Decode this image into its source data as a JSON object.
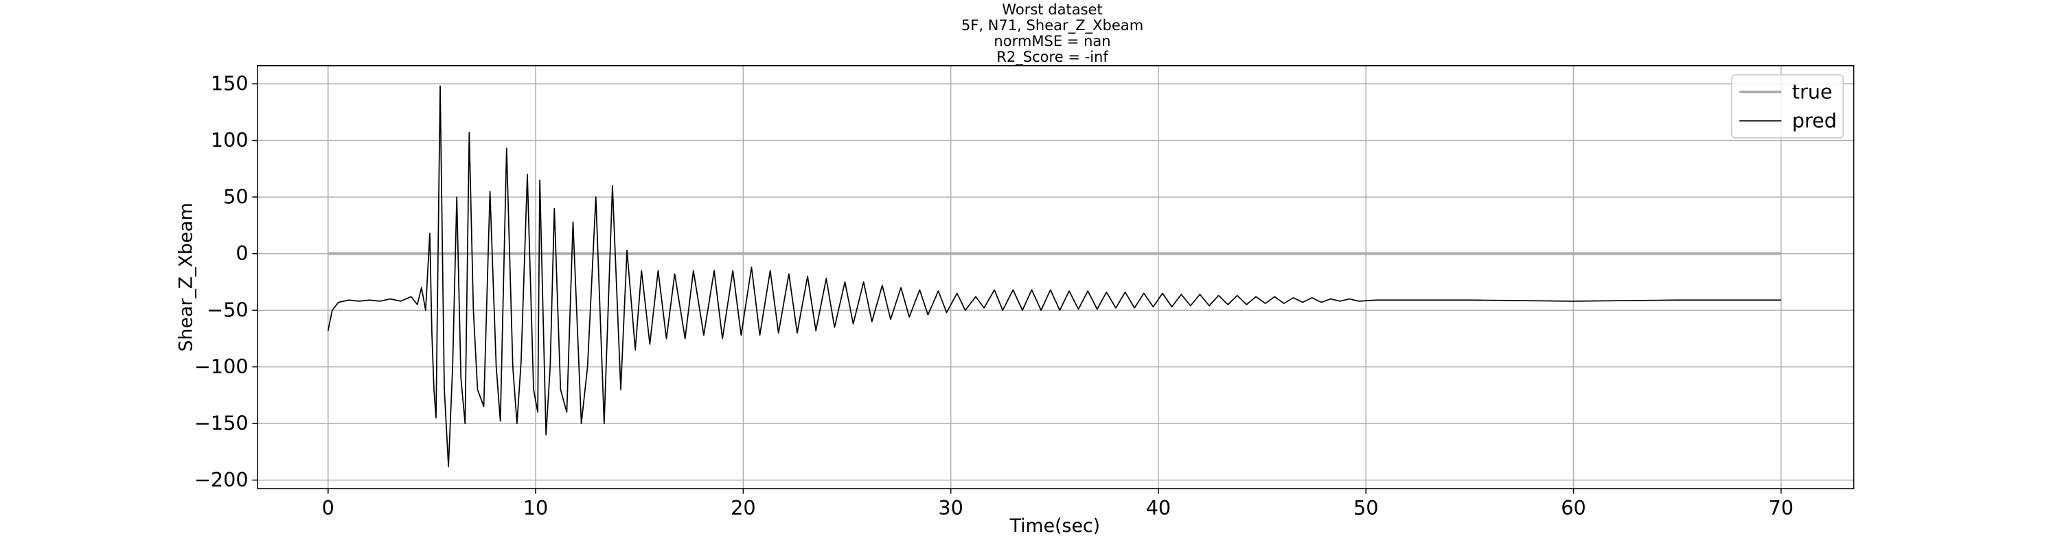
{
  "chart_data": {
    "type": "line",
    "title": [
      "Worst dataset",
      "5F, N71, Shear_Z_Xbeam",
      "normMSE = nan",
      "R2_Score = -inf"
    ],
    "x_label": "Time(sec)",
    "y_label": "Shear_Z_Xbeam",
    "xlim": [
      -3.4,
      73.5
    ],
    "ylim": [
      -207.5,
      166
    ],
    "xticks": [
      0,
      10,
      20,
      30,
      40,
      50,
      60,
      70
    ],
    "yticks": [
      {
        "value": -200,
        "label": "−200"
      },
      {
        "value": -150,
        "label": "−150"
      },
      {
        "value": -100,
        "label": "−100"
      },
      {
        "value": -50,
        "label": "−50"
      },
      0,
      50,
      100,
      150
    ],
    "grid": true,
    "legend": "upper right",
    "series": [
      {
        "name": "true",
        "color": "#aaaaaa",
        "x": [
          0,
          70
        ],
        "values": [
          0,
          0
        ]
      },
      {
        "name": "pred",
        "color": "#000000",
        "x": [
          0,
          0.2,
          0.5,
          1,
          1.5,
          2,
          2.5,
          3,
          3.5,
          4,
          4.3,
          4.5,
          4.7,
          4.9,
          5.0,
          5.1,
          5.2,
          5.4,
          5.6,
          5.8,
          6.0,
          6.2,
          6.4,
          6.6,
          6.8,
          7.0,
          7.2,
          7.5,
          7.8,
          8.1,
          8.3,
          8.6,
          8.9,
          9.1,
          9.3,
          9.6,
          9.9,
          10.1,
          10.2,
          10.5,
          10.7,
          10.9,
          11.2,
          11.5,
          11.8,
          12.2,
          12.5,
          12.9,
          13.3,
          13.7,
          14.1,
          14.4,
          14.8,
          15.1,
          15.5,
          15.9,
          16.3,
          16.7,
          17.2,
          17.6,
          18.1,
          18.6,
          19.0,
          19.5,
          19.9,
          20.4,
          20.8,
          21.3,
          21.7,
          22.2,
          22.6,
          23.1,
          23.5,
          24.0,
          24.4,
          24.9,
          25.3,
          25.8,
          26.2,
          26.7,
          27.1,
          27.6,
          28.0,
          28.5,
          28.9,
          29.4,
          29.8,
          30.3,
          30.7,
          31.2,
          31.6,
          32.1,
          32.5,
          33.0,
          33.45,
          33.9,
          34.35,
          34.8,
          35.25,
          35.7,
          36.15,
          36.6,
          37.05,
          37.5,
          37.95,
          38.4,
          38.85,
          39.3,
          39.75,
          40.2,
          40.65,
          41.1,
          41.55,
          42.0,
          42.45,
          42.9,
          43.35,
          43.8,
          44.25,
          44.7,
          45.15,
          45.6,
          46.05,
          46.5,
          46.95,
          47.4,
          47.85,
          48.3,
          48.75,
          49.2,
          49.65,
          50.5,
          55,
          60,
          65,
          70
        ],
        "values": [
          -68,
          -50,
          -43,
          -41,
          -42,
          -41,
          -42,
          -40,
          -42,
          -38,
          -45,
          -30,
          -50,
          18,
          -70,
          -120,
          -145,
          148,
          -120,
          -188,
          -100,
          50,
          -110,
          -150,
          107,
          -50,
          -120,
          -135,
          55,
          -100,
          -148,
          93,
          -100,
          -150,
          -95,
          70,
          -120,
          -140,
          65,
          -160,
          -100,
          40,
          -120,
          -140,
          28,
          -150,
          -100,
          50,
          -150,
          60,
          -120,
          3,
          -85,
          -15,
          -80,
          -15,
          -75,
          -18,
          -75,
          -15,
          -72,
          -15,
          -75,
          -15,
          -72,
          -12,
          -72,
          -15,
          -70,
          -18,
          -70,
          -20,
          -68,
          -22,
          -65,
          -25,
          -62,
          -25,
          -60,
          -28,
          -58,
          -30,
          -56,
          -32,
          -54,
          -33,
          -52,
          -35,
          -50,
          -38,
          -48,
          -32,
          -50,
          -32,
          -50,
          -32,
          -50,
          -32,
          -50,
          -33,
          -49,
          -33,
          -49,
          -34,
          -48,
          -34,
          -48,
          -35,
          -47,
          -35,
          -47,
          -36,
          -46,
          -36,
          -46,
          -37,
          -45,
          -37,
          -45,
          -38,
          -44,
          -38,
          -44,
          -39,
          -43,
          -39,
          -43,
          -40,
          -42,
          -40,
          -42,
          -41,
          -41,
          -42,
          -41,
          -41
        ]
      }
    ]
  }
}
